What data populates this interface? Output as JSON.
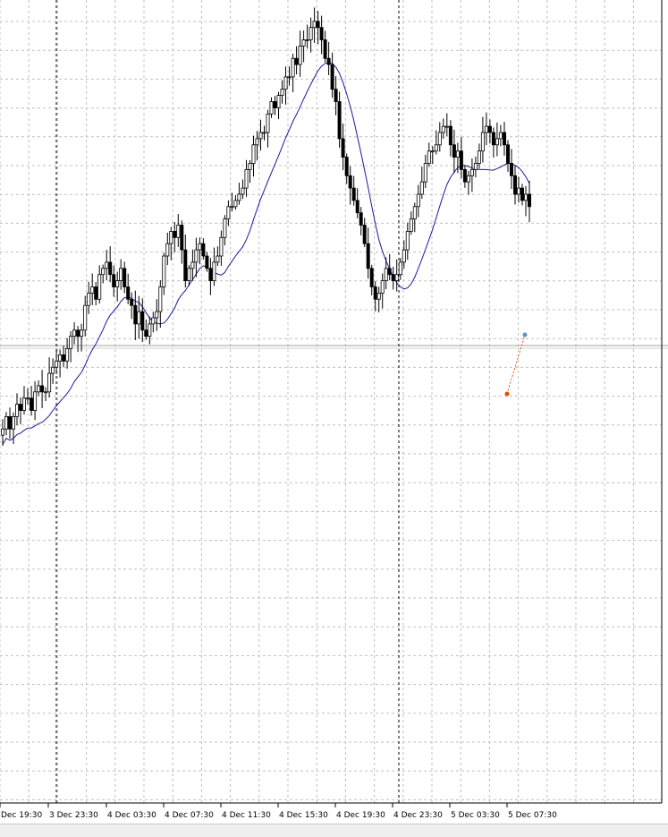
{
  "colors": {
    "background": "#ffffff",
    "grid": "#c0c0c0",
    "candle": "#000000",
    "ma_line": "#1a1a9e",
    "trade_line": "#e05000",
    "axis": "#000000"
  },
  "chart_data": {
    "type": "candlestick",
    "title": "",
    "xlabel": "",
    "ylabel": "",
    "time_labels": [
      "Dec 19:30",
      "3 Dec 23:30",
      "4 Dec 03:30",
      "4 Dec 07:30",
      "4 Dec 11:30",
      "4 Dec 15:30",
      "4 Dec 19:30",
      "4 Dec 23:30",
      "5 Dec 03:30",
      "5 Dec 07:30"
    ],
    "period_separators": [
      "3 Dec 23:30",
      "4 Dec 23:30"
    ],
    "bar_count": 148,
    "ylim": [
      0,
      100
    ],
    "grid": true,
    "closes": [
      32,
      34,
      32,
      34,
      36,
      35,
      37,
      37,
      35,
      38,
      39,
      38,
      38,
      41,
      42,
      43,
      44,
      43,
      45,
      47,
      48,
      47,
      48,
      52,
      54,
      55,
      53,
      57,
      58,
      59,
      57,
      55,
      56,
      58,
      55,
      53,
      52,
      49,
      51,
      48,
      47,
      49,
      50,
      51,
      55,
      60,
      62,
      64,
      63,
      65,
      61,
      56,
      58,
      59,
      61,
      62,
      60,
      58,
      56,
      59,
      60,
      63,
      66,
      68,
      68,
      69,
      70,
      71,
      74,
      75,
      78,
      79,
      80,
      80,
      83,
      85,
      84,
      86,
      87,
      89,
      89,
      92,
      91,
      94,
      95,
      95,
      97,
      98,
      97,
      95,
      92,
      91,
      87,
      85,
      79,
      76,
      73,
      71,
      69,
      67,
      65,
      62,
      58,
      55,
      53,
      54,
      56,
      58,
      57,
      56,
      57,
      59,
      61,
      64,
      66,
      68,
      70,
      72,
      75,
      77,
      77,
      78,
      80,
      81,
      81,
      78,
      76,
      77,
      74,
      72,
      73,
      74,
      75,
      77,
      80,
      81,
      80,
      78,
      79,
      80,
      78,
      75,
      73,
      70,
      71,
      69,
      70,
      68
    ],
    "ma_label_values": []
  }
}
